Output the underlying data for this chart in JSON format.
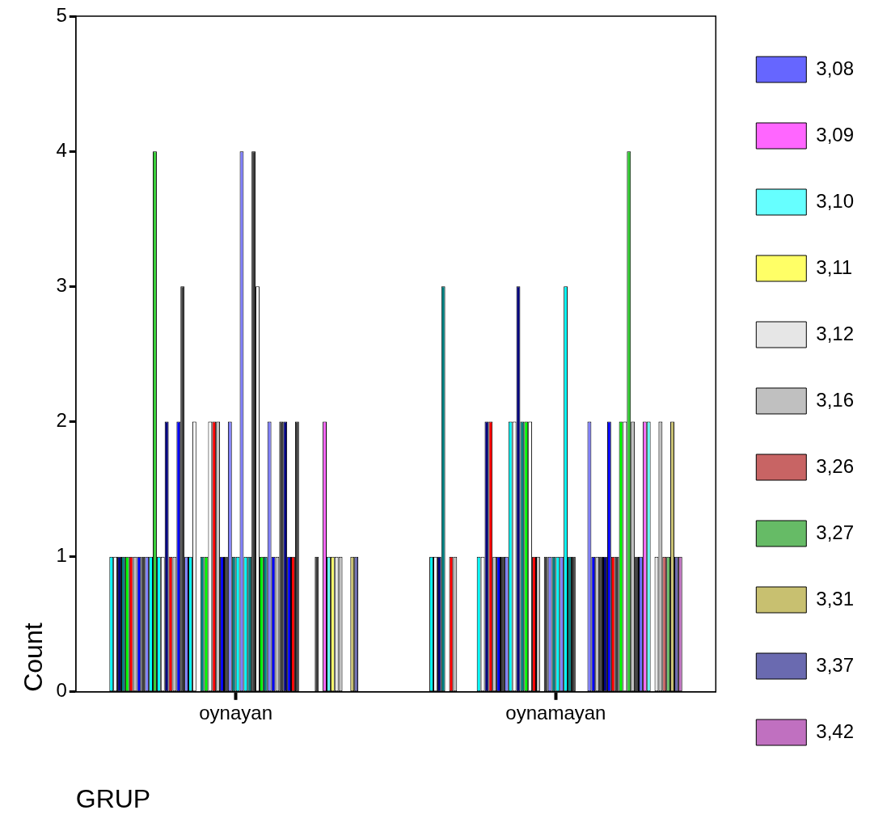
{
  "chart_data": {
    "type": "bar",
    "xlabel": "GRUP",
    "ylabel": "Count",
    "categories": [
      "oynayan",
      "oynamayan"
    ],
    "ylim": [
      0,
      5
    ],
    "yticks": [
      0,
      1,
      2,
      3,
      4,
      5
    ],
    "grid": false,
    "legend": "right",
    "series": [
      {
        "color": "#00ffff",
        "values": [
          1,
          1
        ]
      },
      {
        "color": "#ffffff",
        "values": [
          1,
          1
        ]
      },
      {
        "color": "#000080",
        "values": [
          1,
          1
        ]
      },
      {
        "color": "#008080",
        "values": [
          1,
          3
        ]
      },
      {
        "color": "#00ff00",
        "values": [
          1,
          0
        ]
      },
      {
        "color": "#ff0000",
        "values": [
          1,
          1
        ]
      },
      {
        "color": "#c0c0c0",
        "values": [
          1,
          1
        ]
      },
      {
        "color": "#0000ff",
        "values": [
          1,
          0
        ]
      },
      {
        "color": "#404040",
        "values": [
          1,
          0
        ]
      },
      {
        "color": "#8080ff",
        "values": [
          1,
          0
        ]
      },
      {
        "color": "#00ffff",
        "values": [
          1,
          0
        ]
      },
      {
        "color": "#33cc33",
        "values": [
          4,
          0
        ]
      },
      {
        "color": "#00ffff",
        "values": [
          1,
          1
        ]
      },
      {
        "color": "#ffffff",
        "values": [
          1,
          1
        ]
      },
      {
        "color": "#000080",
        "values": [
          2,
          2
        ]
      },
      {
        "color": "#ff0000",
        "values": [
          1,
          2
        ]
      },
      {
        "color": "#c0c0c0",
        "values": [
          1,
          1
        ]
      },
      {
        "color": "#0000ff",
        "values": [
          2,
          1
        ]
      },
      {
        "color": "#404040",
        "values": [
          3,
          1
        ]
      },
      {
        "color": "#8080ff",
        "values": [
          1,
          1
        ]
      },
      {
        "color": "#00ffff",
        "values": [
          1,
          2
        ]
      },
      {
        "color": "#ffffff",
        "values": [
          2,
          2
        ]
      },
      {
        "color": "#000080",
        "values": [
          0,
          3
        ]
      },
      {
        "color": "#008080",
        "values": [
          1,
          2
        ]
      },
      {
        "color": "#00ff00",
        "values": [
          1,
          2
        ]
      },
      {
        "color": "#ffffff",
        "values": [
          2,
          2
        ]
      },
      {
        "color": "#ff0000",
        "values": [
          2,
          1
        ]
      },
      {
        "color": "#c0c0c0",
        "values": [
          2,
          1
        ]
      },
      {
        "color": "#0000ff",
        "values": [
          1,
          0
        ]
      },
      {
        "color": "#404040",
        "values": [
          1,
          1
        ]
      },
      {
        "color": "#8080ff",
        "values": [
          2,
          1
        ]
      },
      {
        "color": "#008080",
        "values": [
          1,
          1
        ]
      },
      {
        "color": "#00ffff",
        "values": [
          1,
          1
        ]
      },
      {
        "color": "#8080ff",
        "values": [
          4,
          1
        ]
      },
      {
        "color": "#00ffff",
        "values": [
          1,
          3
        ]
      },
      {
        "color": "#008080",
        "values": [
          1,
          1
        ]
      },
      {
        "color": "#404040",
        "values": [
          4,
          1
        ]
      },
      {
        "color": "#ffffff",
        "values": [
          3,
          0
        ]
      },
      {
        "color": "#00ff00",
        "values": [
          1,
          0
        ]
      },
      {
        "color": "#008080",
        "values": [
          1,
          0
        ]
      },
      {
        "color": "#8080ff",
        "values": [
          2,
          2
        ]
      },
      {
        "color": "#0000ff",
        "values": [
          1,
          1
        ]
      },
      {
        "color": "#c0c0c0",
        "values": [
          1,
          1
        ]
      },
      {
        "color": "#404040",
        "values": [
          2,
          1
        ]
      },
      {
        "color": "#000080",
        "values": [
          2,
          1
        ]
      },
      {
        "color": "#0000ff",
        "values": [
          1,
          2
        ]
      },
      {
        "color": "#ff0000",
        "values": [
          1,
          1
        ]
      },
      {
        "color": "#404040",
        "values": [
          2,
          1
        ]
      },
      {
        "color": "#00ff00",
        "values": [
          0,
          2
        ]
      },
      {
        "color": "#ffffff",
        "values": [
          0,
          2
        ]
      },
      {
        "color": "#33cc33",
        "values": [
          0,
          4
        ]
      },
      {
        "color": "#c0c0c0",
        "values": [
          0,
          2
        ]
      },
      {
        "color": "#404040",
        "values": [
          1,
          1
        ]
      },
      {
        "name": "3,08",
        "color": "#6666ff",
        "values": [
          0,
          1
        ]
      },
      {
        "name": "3,09",
        "color": "#ff66ff",
        "values": [
          2,
          2
        ]
      },
      {
        "name": "3,10",
        "color": "#66ffff",
        "values": [
          1,
          2
        ]
      },
      {
        "name": "3,11",
        "color": "#ffff66",
        "values": [
          1,
          0
        ]
      },
      {
        "name": "3,12",
        "color": "#e6e6e6",
        "values": [
          1,
          1
        ]
      },
      {
        "name": "3,16",
        "color": "#c0c0c0",
        "values": [
          1,
          2
        ]
      },
      {
        "name": "3,26",
        "color": "#c86464",
        "values": [
          0,
          1
        ]
      },
      {
        "name": "3,27",
        "color": "#66bb66",
        "values": [
          0,
          1
        ]
      },
      {
        "name": "3,31",
        "color": "#c8c070",
        "values": [
          1,
          2
        ]
      },
      {
        "name": "3,37",
        "color": "#6a6ab0",
        "values": [
          1,
          1
        ]
      },
      {
        "name": "3,42",
        "color": "#c070c0",
        "values": [
          0,
          1
        ]
      }
    ]
  }
}
